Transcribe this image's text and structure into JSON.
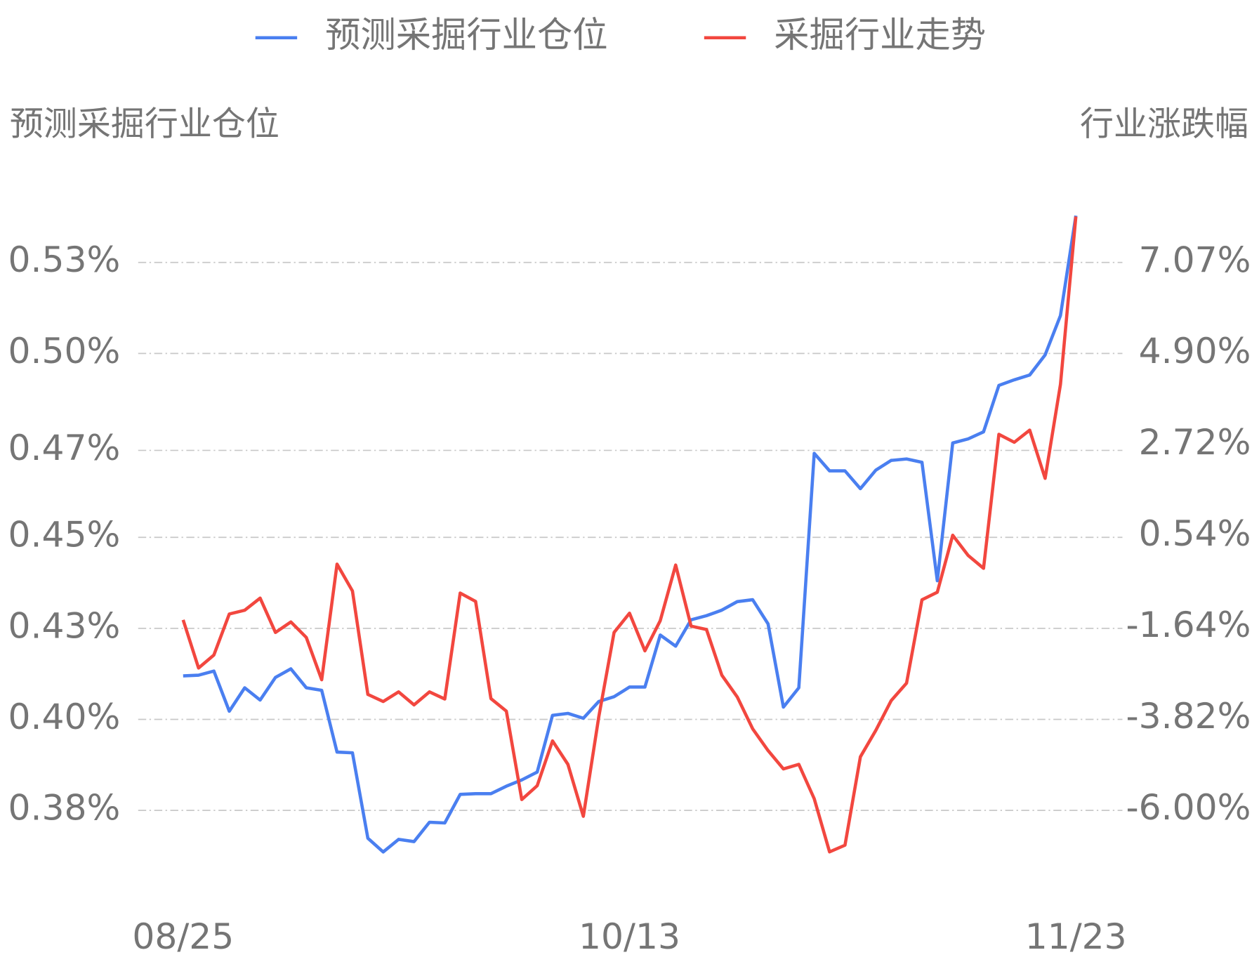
{
  "chart_data": {
    "type": "line",
    "y_label": "预测采掘行业仓位",
    "y2_label": "行业涨跌幅",
    "categories": [
      "08/25",
      null,
      null,
      null,
      null,
      null,
      null,
      null,
      null,
      null,
      null,
      null,
      null,
      null,
      null,
      null,
      null,
      null,
      null,
      null,
      null,
      null,
      null,
      null,
      null,
      null,
      null,
      null,
      null,
      "10/13",
      null,
      null,
      null,
      null,
      null,
      null,
      null,
      null,
      null,
      null,
      null,
      null,
      null,
      null,
      null,
      null,
      null,
      null,
      null,
      null,
      null,
      null,
      null,
      null,
      null,
      null,
      null,
      null,
      "11/23"
    ],
    "series": [
      {
        "name": "预测采掘行业仓位",
        "color": "#4a7ff0",
        "axis": "y",
        "values": [
          0.4142,
          0.4144,
          0.4155,
          0.4047,
          0.411,
          0.4077,
          0.4138,
          0.4161,
          0.411,
          0.4103,
          0.3937,
          0.3935,
          0.3705,
          0.3668,
          0.3702,
          0.3696,
          0.3748,
          0.3746,
          0.3823,
          0.3825,
          0.3825,
          0.3845,
          0.3862,
          0.3883,
          0.4036,
          0.4041,
          0.4028,
          0.4073,
          0.4086,
          0.4112,
          0.4112,
          0.4252,
          0.4222,
          0.4293,
          0.4304,
          0.4319,
          0.4342,
          0.4347,
          0.4282,
          0.4058,
          0.411,
          0.4741,
          0.4694,
          0.4694,
          0.4646,
          0.4696,
          0.4722,
          0.4726,
          0.4717,
          0.4398,
          0.4769,
          0.478,
          0.4799,
          0.4924,
          0.4939,
          0.4952,
          0.5006,
          0.5112,
          0.5381
        ]
      },
      {
        "name": "采掘行业走势",
        "color": "#f2473f",
        "axis": "y2",
        "values": [
          -1.46,
          -2.61,
          -2.3,
          -1.32,
          -1.23,
          -0.94,
          -1.76,
          -1.51,
          -1.88,
          -2.89,
          -0.13,
          -0.77,
          -3.24,
          -3.41,
          -3.18,
          -3.49,
          -3.18,
          -3.35,
          -0.82,
          -1.02,
          -3.34,
          -3.64,
          -5.75,
          -5.42,
          -4.35,
          -4.91,
          -6.15,
          -3.78,
          -1.76,
          -1.3,
          -2.2,
          -1.48,
          -0.15,
          -1.61,
          -1.69,
          -2.78,
          -3.3,
          -4.06,
          -4.58,
          -5.02,
          -4.91,
          -5.73,
          -7.0,
          -6.84,
          -4.73,
          -4.1,
          -3.39,
          -2.97,
          -0.98,
          -0.8,
          0.56,
          0.08,
          -0.23,
          2.97,
          2.78,
          3.07,
          1.92,
          4.16,
          8.17
        ]
      }
    ],
    "ylim": [
      0.3541,
      0.5486
    ],
    "yticks": [
      {
        "value": 0.378,
        "label": "0.38%"
      },
      {
        "value": 0.4025,
        "label": "0.40%"
      },
      {
        "value": 0.427,
        "label": "0.43%"
      },
      {
        "value": 0.4515,
        "label": "0.45%"
      },
      {
        "value": 0.4749,
        "label": "0.47%"
      },
      {
        "value": 0.501,
        "label": "0.50%"
      },
      {
        "value": 0.5255,
        "label": "0.53%"
      }
    ],
    "y2lim": [
      -8.128,
      9.122
    ],
    "y2ticks": [
      {
        "value": -6.0,
        "label": "-6.00%"
      },
      {
        "value": -3.82,
        "label": "-3.82%"
      },
      {
        "value": -1.64,
        "label": "-1.64%"
      },
      {
        "value": 0.54,
        "label": "0.54%"
      },
      {
        "value": 2.72,
        "label": "2.72%"
      },
      {
        "value": 4.9,
        "label": "4.90%"
      },
      {
        "value": 7.07,
        "label": "7.07%"
      }
    ],
    "grid": true
  }
}
